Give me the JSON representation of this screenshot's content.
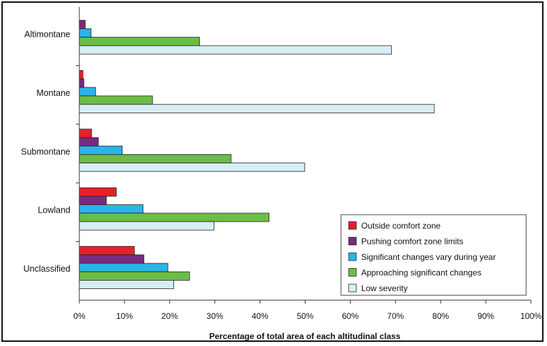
{
  "chart_data": {
    "type": "bar",
    "orientation": "horizontal",
    "categories": [
      "Altimontane",
      "Montane",
      "Submontane",
      "Lowland",
      "Unclassified"
    ],
    "series": [
      {
        "name": "Outside comfort zone",
        "color": "#e8202a",
        "values": [
          0,
          0.8,
          2.7,
          8.2,
          12.2
        ]
      },
      {
        "name": "Pushing comfort zone limits",
        "color": "#7b2a83",
        "values": [
          1.3,
          1.0,
          4.2,
          6.0,
          14.3
        ]
      },
      {
        "name": "Significant changes vary during year",
        "color": "#29b5e8",
        "values": [
          2.6,
          3.6,
          9.5,
          14.1,
          19.6
        ]
      },
      {
        "name": "Approaching significant changes",
        "color": "#6cbd45",
        "values": [
          26.6,
          16.2,
          33.6,
          42.0,
          24.4
        ]
      },
      {
        "name": "Low severity",
        "color": "#d6eef5",
        "values": [
          69.1,
          78.6,
          49.9,
          29.8,
          20.9
        ]
      }
    ],
    "xlim": [
      0,
      100
    ],
    "xticks": [
      "0%",
      "10%",
      "20%",
      "30%",
      "40%",
      "50%",
      "60%",
      "70%",
      "80%",
      "90%",
      "100%"
    ],
    "xlabel": "Percentage of total area of each altitudinal class",
    "ylabel": "",
    "title": "",
    "grid": false,
    "legend_position": "bottom-right"
  }
}
